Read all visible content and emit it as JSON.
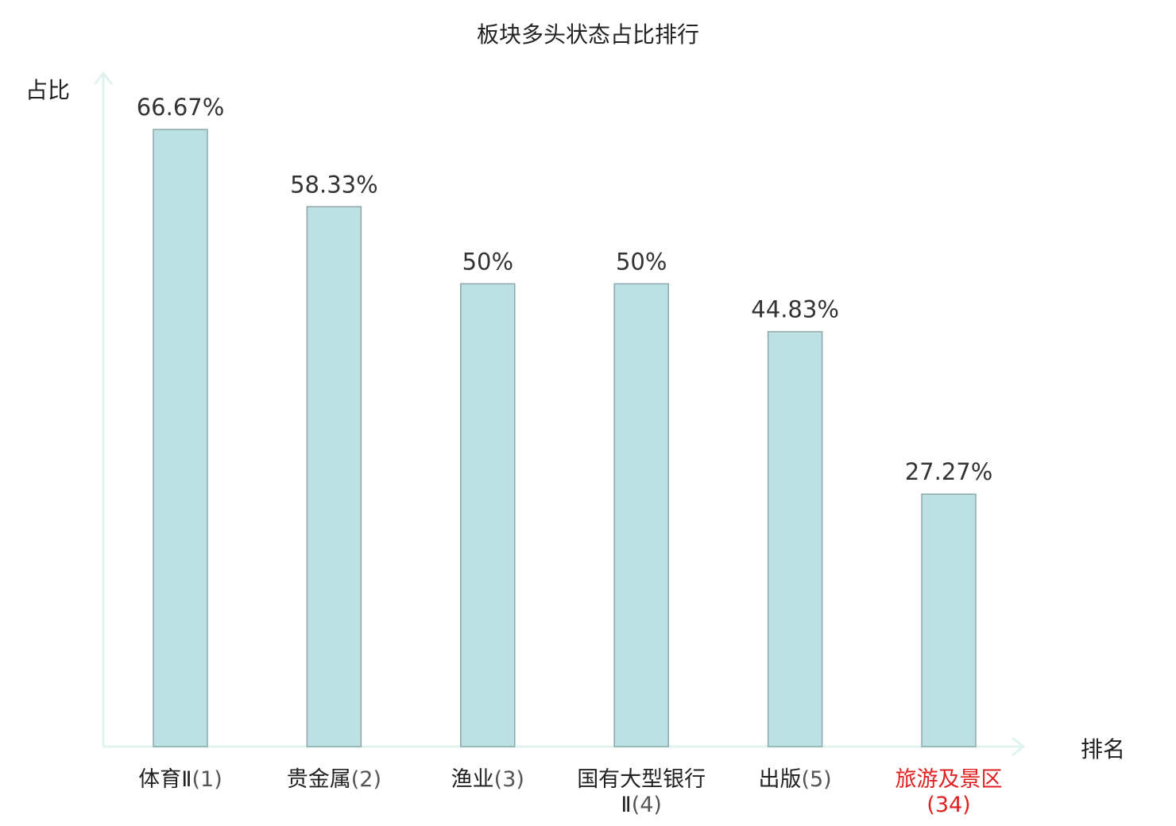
{
  "chart_data": {
    "type": "bar",
    "title": "板块多头状态占比排行",
    "ylabel": "占比",
    "xlabel": "排名",
    "ylim": [
      0,
      75
    ],
    "grid": false,
    "categories": [
      {
        "name": "体育Ⅱ",
        "rank": "(1)",
        "highlight": false
      },
      {
        "name": "贵金属",
        "rank": "(2)",
        "highlight": false
      },
      {
        "name": "渔业",
        "rank": "(3)",
        "highlight": false
      },
      {
        "name": "国有大型银行Ⅱ",
        "rank": "(4)",
        "highlight": false
      },
      {
        "name": "出版",
        "rank": "(5)",
        "highlight": false
      },
      {
        "name": "旅游及景区",
        "rank": "(34)",
        "highlight": true
      }
    ],
    "values": [
      66.67,
      58.33,
      50,
      50,
      44.83,
      27.27
    ],
    "value_labels": [
      "66.67%",
      "58.33%",
      "50%",
      "50%",
      "44.83%",
      "27.27%"
    ]
  },
  "colors": {
    "bar_fill": "#bde0e3",
    "bar_stroke": "#8aa8ab",
    "axis": "#e0f2ef",
    "highlight_text": "#e02020"
  }
}
